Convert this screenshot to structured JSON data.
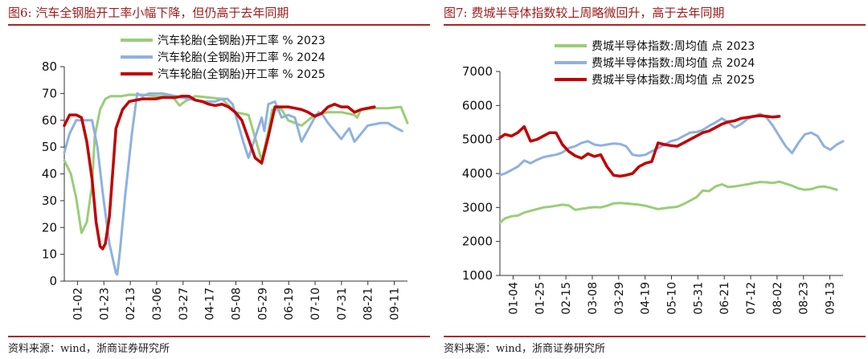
{
  "panels": [
    {
      "title": "图6:  汽车全钢胎开工率小幅下降，但仍高于去年同期",
      "source": "资料来源：wind，浙商证券研究所"
    },
    {
      "title": "图7:  费城半导体指数较上周略微回升，高于去年同期",
      "source": "资料来源：wind，浙商证券研究所"
    }
  ],
  "chart_data": [
    {
      "type": "line",
      "title": "汽车全钢胎开工率小幅下降，但仍高于去年同期",
      "x_ticks": [
        "01-02",
        "01-23",
        "02-13",
        "03-06",
        "03-27",
        "04-17",
        "05-08",
        "05-29",
        "06-19",
        "07-10",
        "07-31",
        "08-21",
        "09-11"
      ],
      "xlim": [
        1,
        260
      ],
      "ylim": [
        0,
        80
      ],
      "y_ticks": [
        0,
        10,
        20,
        30,
        40,
        50,
        60,
        70,
        80
      ],
      "grid": false,
      "legend_position": "top",
      "series": [
        {
          "name": "汽车轮胎(全钢胎)开工率  %  2023",
          "color": "#9acd78",
          "x": [
            1,
            6,
            10,
            14,
            18,
            22,
            24,
            28,
            32,
            36,
            40,
            44,
            50,
            60,
            70,
            80,
            84,
            88,
            92,
            100,
            110,
            120,
            130,
            140,
            150,
            155,
            158,
            161,
            163,
            165,
            170,
            180,
            190,
            200,
            210,
            220,
            222,
            225,
            235,
            245,
            255,
            260
          ],
          "y": [
            45,
            40,
            31,
            18,
            22,
            36,
            54,
            64,
            68,
            69,
            69,
            69,
            69.5,
            69.5,
            69,
            69,
            68,
            65.5,
            67,
            69,
            68.5,
            68,
            63,
            62,
            45,
            56,
            64,
            64,
            64,
            64,
            60,
            58,
            62,
            63,
            63,
            62,
            61,
            64,
            64.5,
            64.5,
            65,
            59
          ]
        },
        {
          "name": "汽车轮胎(全钢胎)开工率  %  2024",
          "color": "#8fb1e0",
          "x": [
            1,
            5,
            10,
            14,
            22,
            26,
            30,
            35,
            40,
            41,
            43,
            47,
            52,
            56,
            60,
            65,
            75,
            85,
            95,
            105,
            115,
            120,
            124,
            128,
            132,
            136,
            140,
            150,
            152,
            155,
            160,
            165,
            170,
            175,
            180,
            190,
            193,
            196,
            200,
            210,
            213,
            216,
            220,
            230,
            240,
            245,
            252,
            256
          ],
          "y": [
            48,
            55,
            60,
            60,
            60,
            50,
            33,
            14,
            3,
            2.5,
            11,
            32,
            55,
            70,
            69,
            70,
            70,
            69,
            68,
            67,
            67,
            68,
            68,
            66,
            59,
            52,
            46,
            61,
            56,
            66,
            67,
            61,
            62,
            61,
            52,
            61,
            63,
            62,
            59,
            53,
            55,
            57,
            52,
            58,
            59,
            59,
            57,
            56
          ]
        },
        {
          "name": "汽车轮胎(全钢胎)开工率  %  2025",
          "color": "#c00000",
          "x": [
            1,
            5,
            10,
            14,
            18,
            22,
            25,
            28,
            30,
            32,
            35,
            40,
            45,
            50,
            55,
            60,
            65,
            70,
            75,
            80,
            85,
            90,
            95,
            100,
            105,
            110,
            115,
            120,
            125,
            130,
            135,
            140,
            145,
            150,
            155,
            160,
            165,
            170,
            175,
            180,
            185,
            190,
            195,
            200,
            205,
            210,
            215,
            220,
            225,
            230,
            235
          ],
          "y": [
            58,
            62,
            62,
            61,
            52,
            38,
            22,
            13,
            12,
            14,
            24,
            57,
            64,
            67,
            67.5,
            68,
            68,
            68,
            68.5,
            68.5,
            68.5,
            69,
            69,
            67.5,
            67,
            66,
            65.5,
            66,
            65,
            63,
            60,
            53,
            46,
            44,
            54,
            65,
            65,
            65,
            64.5,
            64,
            63,
            61.5,
            62.5,
            65,
            66,
            65,
            65,
            63,
            64,
            64.5,
            65
          ]
        }
      ]
    },
    {
      "type": "line",
      "title": "费城半导体指数较上周略微回升，高于去年同期",
      "x_ticks": [
        "01-04",
        "01-25",
        "02-15",
        "03-08",
        "03-29",
        "04-19",
        "05-10",
        "05-31",
        "06-21",
        "07-12",
        "08-02",
        "08-23",
        "09-13"
      ],
      "xlim": [
        1,
        270
      ],
      "ylim": [
        1000,
        7000
      ],
      "y_ticks": [
        1000,
        2000,
        3000,
        4000,
        5000,
        6000,
        7000
      ],
      "grid": false,
      "legend_position": "top",
      "series": [
        {
          "name": "费城半导体指数:周均值  点  2023",
          "color": "#9acd78",
          "x": [
            1,
            5,
            10,
            15,
            20,
            25,
            30,
            35,
            40,
            45,
            50,
            55,
            60,
            65,
            70,
            75,
            80,
            85,
            90,
            95,
            100,
            105,
            110,
            115,
            120,
            125,
            130,
            135,
            140,
            145,
            150,
            155,
            160,
            165,
            170,
            175,
            180,
            185,
            190,
            195,
            200,
            205,
            210,
            215,
            220,
            225,
            230,
            235,
            240,
            245,
            250,
            255,
            260,
            265
          ],
          "y": [
            2550,
            2680,
            2740,
            2760,
            2850,
            2900,
            2950,
            3000,
            3020,
            3050,
            3080,
            3060,
            2930,
            2960,
            2990,
            3010,
            3000,
            3050,
            3120,
            3130,
            3120,
            3100,
            3080,
            3050,
            3000,
            2950,
            2980,
            3000,
            3020,
            3100,
            3200,
            3300,
            3500,
            3480,
            3620,
            3680,
            3600,
            3620,
            3650,
            3680,
            3720,
            3750,
            3740,
            3720,
            3760,
            3700,
            3640,
            3560,
            3520,
            3540,
            3600,
            3620,
            3580,
            3520
          ]
        },
        {
          "name": "费城半导体指数:周均值  点  2024",
          "color": "#8fb1e0",
          "x": [
            1,
            5,
            10,
            15,
            20,
            25,
            30,
            35,
            40,
            45,
            50,
            55,
            60,
            65,
            70,
            75,
            80,
            85,
            90,
            95,
            100,
            105,
            110,
            115,
            120,
            125,
            130,
            135,
            140,
            145,
            150,
            155,
            160,
            165,
            170,
            175,
            180,
            185,
            190,
            195,
            200,
            205,
            210,
            215,
            220,
            225,
            230,
            235,
            240,
            245,
            250,
            255,
            260,
            265,
            270
          ],
          "y": [
            3950,
            4000,
            4100,
            4200,
            4380,
            4300,
            4400,
            4480,
            4520,
            4550,
            4620,
            4750,
            4800,
            4900,
            4950,
            4850,
            4820,
            4850,
            4880,
            4870,
            4800,
            4550,
            4520,
            4550,
            4650,
            4750,
            4850,
            4950,
            5000,
            5100,
            5200,
            5220,
            5280,
            5400,
            5500,
            5620,
            5500,
            5350,
            5450,
            5600,
            5680,
            5750,
            5650,
            5400,
            5100,
            4800,
            4600,
            4900,
            5150,
            5200,
            5100,
            4800,
            4700,
            4850,
            4950
          ]
        },
        {
          "name": "费城半导体指数:周均值  点  2025",
          "color": "#c00000",
          "x": [
            1,
            5,
            10,
            15,
            20,
            25,
            30,
            35,
            40,
            45,
            50,
            55,
            60,
            65,
            70,
            75,
            80,
            85,
            90,
            95,
            100,
            105,
            110,
            115,
            120,
            125,
            130,
            135,
            140,
            145,
            150,
            155,
            160,
            165,
            170,
            175,
            180,
            185,
            190,
            195,
            200,
            205,
            210,
            215,
            220
          ],
          "y": [
            5050,
            5150,
            5100,
            5200,
            5380,
            4950,
            5000,
            5100,
            5200,
            5200,
            4850,
            4650,
            4520,
            4450,
            4580,
            4500,
            4550,
            4200,
            3950,
            3920,
            3950,
            4000,
            4200,
            4300,
            4350,
            4900,
            4850,
            4820,
            4800,
            4900,
            5000,
            5100,
            5200,
            5250,
            5350,
            5450,
            5520,
            5550,
            5620,
            5650,
            5680,
            5700,
            5680,
            5660,
            5680
          ]
        }
      ]
    }
  ]
}
